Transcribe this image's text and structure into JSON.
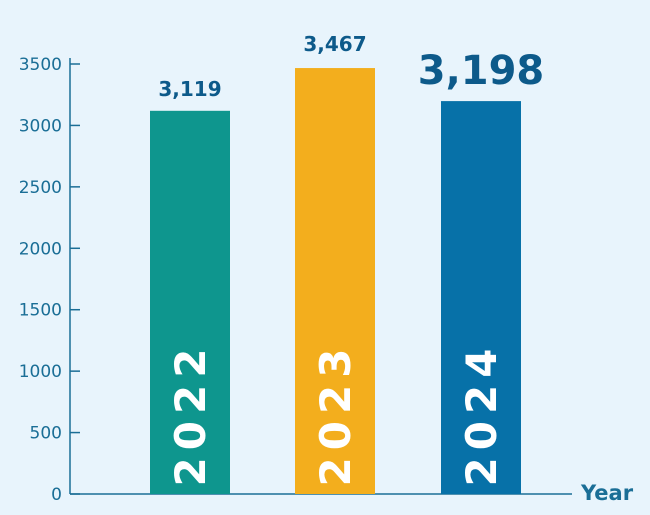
{
  "chart_data": {
    "type": "bar",
    "categories": [
      "2022",
      "2023",
      "2024"
    ],
    "values": [
      3119,
      3467,
      3198
    ],
    "value_labels": [
      "3,119",
      "3,467",
      "3,198"
    ],
    "bar_colors": [
      "#0e968e",
      "#f3ae1d",
      "#0771a8"
    ],
    "xlabel": "Year",
    "ylabel": "",
    "ylim": [
      0,
      3500
    ],
    "yticks": [
      0,
      500,
      1000,
      1500,
      2000,
      2500,
      3000,
      3500
    ],
    "grid": false,
    "legend": "none"
  },
  "colors": {
    "axis": "#1a6e96",
    "background": "#e8f4fc"
  }
}
